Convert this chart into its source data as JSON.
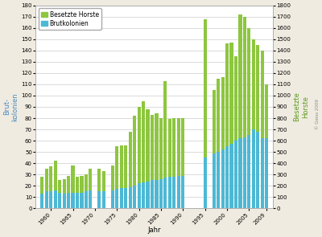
{
  "years": [
    1958,
    1959,
    1960,
    1961,
    1962,
    1963,
    1964,
    1965,
    1966,
    1967,
    1968,
    1969,
    1971,
    1972,
    1974,
    1975,
    1976,
    1977,
    1978,
    1979,
    1980,
    1981,
    1982,
    1983,
    1984,
    1985,
    1986,
    1987,
    1988,
    1989,
    1990,
    1995,
    1997,
    1998,
    1999,
    2000,
    2001,
    2002,
    2003,
    2004,
    2005,
    2006,
    2007,
    2008,
    2009
  ],
  "brutkolonien": [
    13,
    15,
    15,
    16,
    14,
    13,
    14,
    14,
    14,
    14,
    15,
    16,
    15,
    15,
    16,
    17,
    18,
    18,
    19,
    20,
    22,
    23,
    24,
    25,
    25,
    26,
    27,
    28,
    28,
    29,
    29,
    45,
    49,
    50,
    52,
    55,
    57,
    60,
    62,
    63,
    65,
    70,
    68,
    62,
    62
  ],
  "besetzte_horste": [
    28,
    35,
    37,
    42,
    25,
    26,
    29,
    38,
    28,
    29,
    30,
    35,
    35,
    33,
    38,
    55,
    56,
    56,
    68,
    82,
    90,
    95,
    88,
    83,
    84,
    80,
    113,
    79,
    80,
    80,
    80,
    168,
    105,
    115,
    116,
    146,
    147,
    135,
    172,
    170,
    160,
    150,
    145,
    140,
    110
  ],
  "ylabel_left_line1": "Brut-",
  "ylabel_left_line2": "kolonien",
  "ylabel_right_line1": "Besetzte",
  "ylabel_right_line2": "Horste",
  "xlabel": "Jahr",
  "ylim_left": [
    0,
    180
  ],
  "ylim_right": [
    0,
    1800
  ],
  "yticks_left": [
    0,
    10,
    20,
    30,
    40,
    50,
    60,
    70,
    80,
    90,
    100,
    110,
    120,
    130,
    140,
    150,
    160,
    170,
    180
  ],
  "yticks_right": [
    0,
    100,
    200,
    300,
    400,
    500,
    600,
    700,
    800,
    900,
    1000,
    1100,
    1200,
    1300,
    1400,
    1500,
    1600,
    1700,
    1800
  ],
  "color_besetzte": "#8dc63f",
  "color_brut": "#4db8d4",
  "background_color": "#f0ebe0",
  "plot_bg_color": "#ffffff",
  "copyright": "© Geiss 2009",
  "xtick_positions": [
    1960,
    1965,
    1970,
    1975,
    1980,
    1985,
    1990,
    1995,
    2000,
    2005,
    2009
  ],
  "xlim": [
    1956.5,
    2010.5
  ],
  "bar_width": 0.75
}
